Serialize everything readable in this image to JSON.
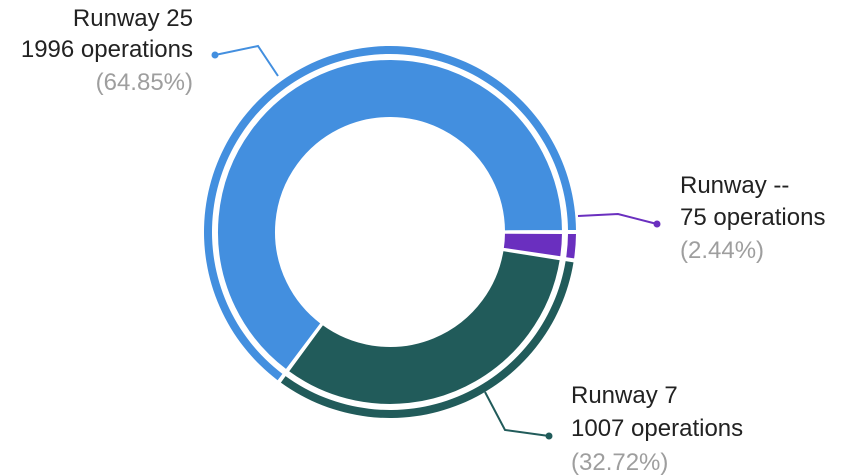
{
  "chart_data": {
    "type": "pie",
    "variant": "donut",
    "start_at": "3 o'clock",
    "order": "clockwise from Runway --",
    "slices": [
      {
        "key": "runway_dash",
        "name": "Runway --",
        "value": 75,
        "ops_text": "75 operations",
        "pct_text": "(2.44%)",
        "color": "#6a2fbf"
      },
      {
        "key": "runway_7",
        "name": "Runway 7",
        "value": 1007,
        "ops_text": "1007 operations",
        "pct_text": "(32.72%)",
        "color": "#215b5a"
      },
      {
        "key": "runway_25",
        "name": "Runway 25",
        "value": 1996,
        "ops_text": "1996 operations",
        "pct_text": "(64.85%)",
        "color": "#438fdf"
      }
    ],
    "legend": "callout labels",
    "background": "#ffffff"
  }
}
